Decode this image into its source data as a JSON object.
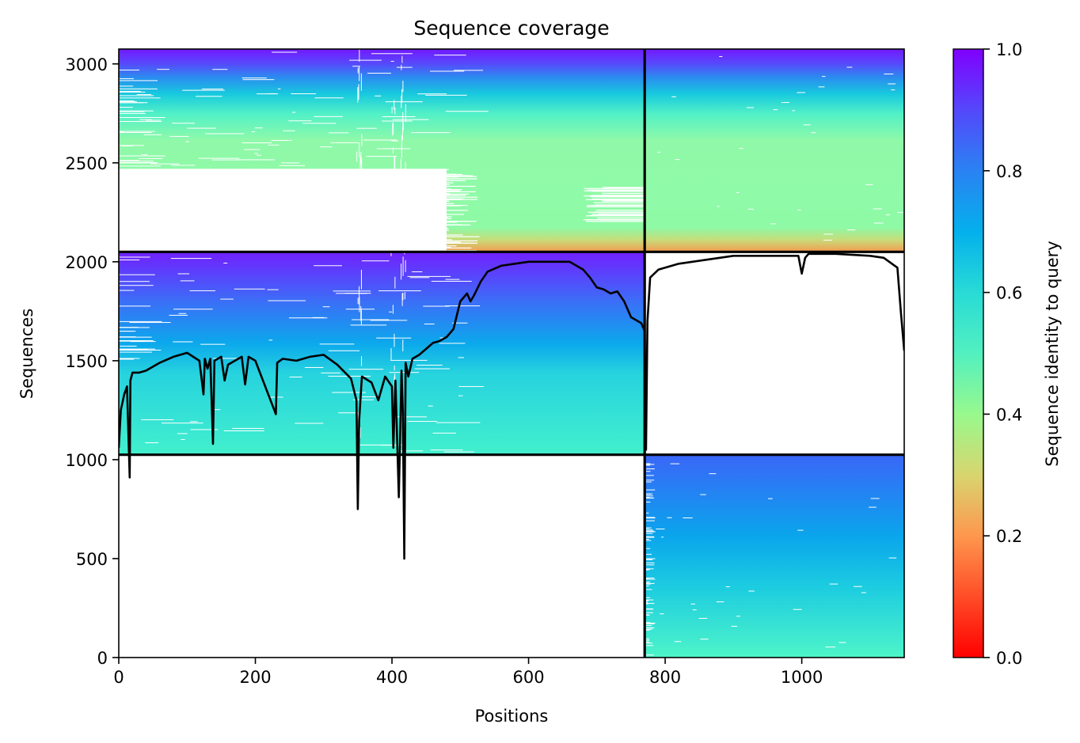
{
  "chart_data": {
    "type": "heatmap",
    "title": "Sequence coverage",
    "xlabel": "Positions",
    "ylabel": "Sequences",
    "colorbar_label": "Sequence identity to query",
    "colormap": "rainbow_r",
    "xlim": [
      0,
      1150
    ],
    "ylim": [
      0,
      3075
    ],
    "clim": [
      0,
      1
    ],
    "x_ticks": [
      "0",
      "200",
      "400",
      "600",
      "800",
      "1000"
    ],
    "x_tick_values": [
      0,
      200,
      400,
      600,
      800,
      1000
    ],
    "y_ticks": [
      "0",
      "500",
      "1000",
      "1500",
      "2000",
      "2500",
      "3000"
    ],
    "y_tick_values": [
      0,
      500,
      1000,
      1500,
      2000,
      2500,
      3000
    ],
    "colorbar_ticks": [
      "0.0",
      "0.2",
      "0.4",
      "0.6",
      "0.8",
      "1.0"
    ],
    "colorbar_tick_values": [
      0.0,
      0.2,
      0.4,
      0.6,
      0.8,
      1.0
    ],
    "chain_boundary_x": 770,
    "block_boundaries_y": [
      1025,
      2050
    ],
    "blocks": [
      {
        "x_range": [
          0,
          770
        ],
        "y_range": [
          2050,
          3075
        ],
        "identity_bottom": 0.25,
        "identity_top": 0.95
      },
      {
        "x_range": [
          770,
          1150
        ],
        "y_range": [
          2050,
          3075
        ],
        "identity_bottom": 0.25,
        "identity_top": 0.95
      },
      {
        "x_range": [
          0,
          770
        ],
        "y_range": [
          1025,
          2050
        ],
        "identity_bottom": 0.6,
        "identity_top": 0.95
      },
      {
        "x_range": [
          770,
          1150
        ],
        "y_range": [
          0,
          1025
        ],
        "identity_bottom": 0.6,
        "identity_top": 0.9
      }
    ],
    "coverage_line": {
      "x": [
        0,
        3,
        8,
        12,
        16,
        17,
        20,
        30,
        40,
        60,
        80,
        100,
        118,
        124,
        126,
        130,
        134,
        138,
        140,
        150,
        155,
        160,
        180,
        185,
        190,
        200,
        230,
        232,
        240,
        260,
        280,
        300,
        320,
        340,
        348,
        350,
        352,
        356,
        370,
        380,
        390,
        400,
        402,
        405,
        410,
        414,
        416,
        418,
        420,
        424,
        430,
        440,
        450,
        460,
        470,
        480,
        490,
        500,
        510,
        515,
        520,
        530,
        540,
        560,
        580,
        600,
        620,
        660,
        680,
        690,
        700,
        710,
        720,
        730,
        740,
        750,
        760,
        765,
        770,
        772,
        774,
        778,
        790,
        800,
        820,
        840,
        860,
        880,
        900,
        950,
        995,
        1000,
        1005,
        1010,
        1050,
        1100,
        1120,
        1140,
        1145,
        1150
      ],
      "y": [
        1060,
        1250,
        1330,
        1370,
        910,
        1400,
        1440,
        1440,
        1450,
        1490,
        1520,
        1540,
        1500,
        1330,
        1510,
        1460,
        1510,
        1080,
        1500,
        1520,
        1400,
        1480,
        1520,
        1380,
        1520,
        1500,
        1230,
        1490,
        1510,
        1500,
        1520,
        1530,
        1480,
        1410,
        1300,
        750,
        1200,
        1420,
        1390,
        1300,
        1420,
        1370,
        1060,
        1400,
        810,
        1450,
        1240,
        500,
        1490,
        1420,
        1510,
        1530,
        1560,
        1590,
        1600,
        1620,
        1660,
        1800,
        1840,
        1800,
        1830,
        1900,
        1950,
        1980,
        1990,
        2000,
        2000,
        2000,
        1960,
        1920,
        1870,
        1860,
        1840,
        1850,
        1800,
        1720,
        1700,
        1690,
        1650,
        1050,
        1700,
        1920,
        1960,
        1970,
        1990,
        2000,
        2010,
        2020,
        2030,
        2030,
        2030,
        1940,
        2020,
        2040,
        2040,
        2030,
        2020,
        1970,
        1750,
        1550
      ]
    }
  }
}
